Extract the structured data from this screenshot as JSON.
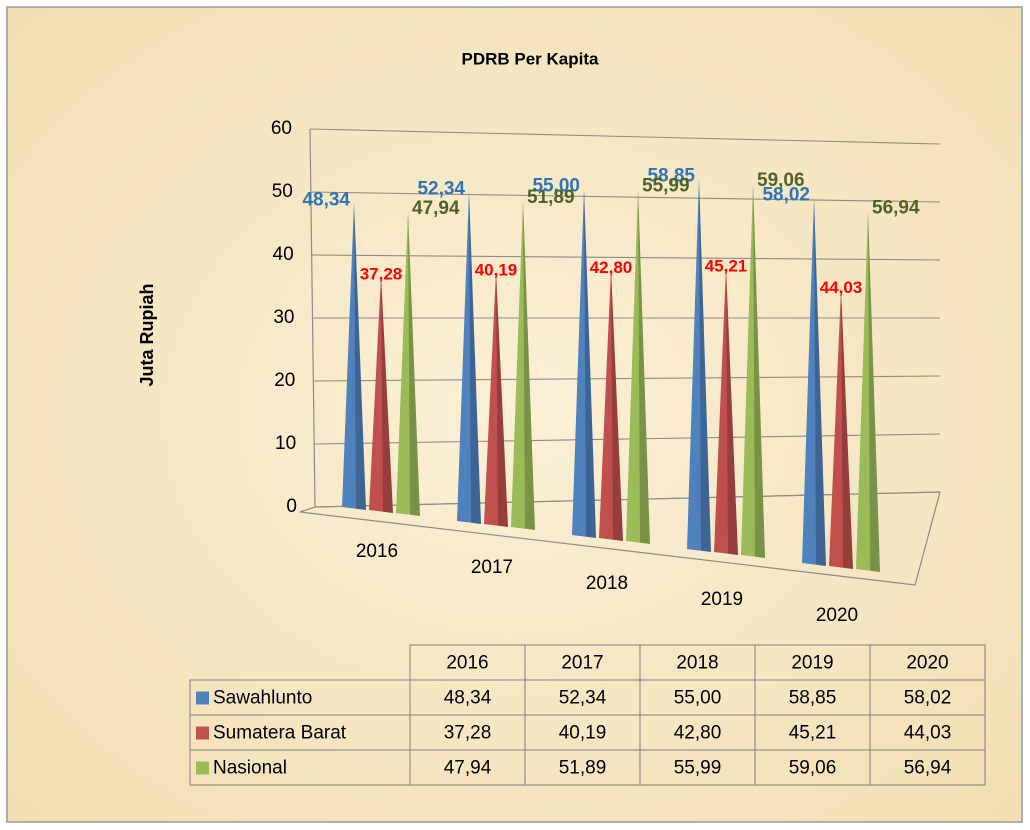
{
  "chart_data": {
    "type": "bar3d",
    "title": "PDRB Per Kapita",
    "y_label": "Juta Rupiah",
    "categories": [
      "2016",
      "2017",
      "2018",
      "2019",
      "2020"
    ],
    "series": [
      {
        "name": "Sawahlunto",
        "color": "#4f81bd",
        "label_color": "#2e75b6",
        "values": [
          48.34,
          52.34,
          55.0,
          58.85,
          58.02
        ],
        "value_labels": [
          "48,34",
          "52,34",
          "55,00",
          "58,85",
          "58,02"
        ]
      },
      {
        "name": "Sumatera Barat",
        "color": "#c0504d",
        "label_color": "#ff0000",
        "values": [
          37.28,
          40.19,
          42.8,
          45.21,
          44.03
        ],
        "value_labels": [
          "37,28",
          "40,19",
          "42,80",
          "45,21",
          "44,03"
        ]
      },
      {
        "name": "Nasional",
        "color": "#9bbb59",
        "label_color": "#4f6228",
        "values": [
          47.94,
          51.89,
          55.99,
          59.06,
          56.94
        ],
        "value_labels": [
          "47,94",
          "51,89",
          "55,99",
          "59,06",
          "56,94"
        ]
      }
    ],
    "ylim": [
      0,
      60
    ],
    "yticks": [
      0,
      10,
      20,
      30,
      40,
      50,
      60
    ],
    "grid": true,
    "data_table": true
  }
}
